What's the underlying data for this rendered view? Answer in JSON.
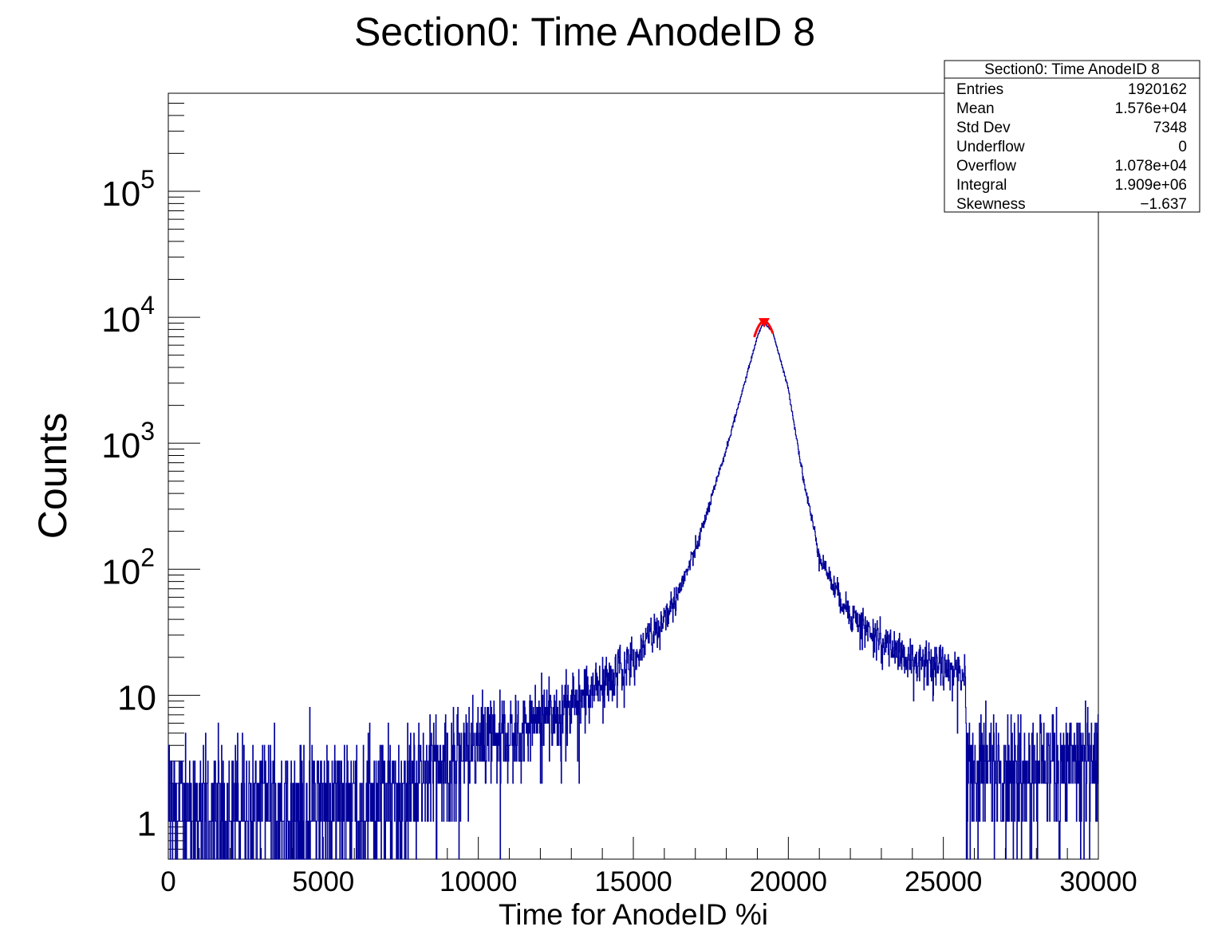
{
  "chart_data": {
    "type": "histogram",
    "title": "Section0: Time AnodeID 8",
    "xlabel": "Time for AnodeID %i",
    "ylabel": "Counts",
    "xlim": [
      0,
      30000
    ],
    "ylim": [
      0.5,
      600000
    ],
    "yscale": "log",
    "x_ticks": [
      0,
      5000,
      10000,
      15000,
      20000,
      25000,
      30000
    ],
    "y_ticks": [
      {
        "value": 1,
        "base": "1",
        "exp": ""
      },
      {
        "value": 10,
        "base": "10",
        "exp": ""
      },
      {
        "value": 100,
        "base": "10",
        "exp": "2"
      },
      {
        "value": 1000,
        "base": "10",
        "exp": "3"
      },
      {
        "value": 10000,
        "base": "10",
        "exp": "4"
      },
      {
        "value": 100000,
        "base": "10",
        "exp": "5"
      }
    ],
    "line_color": "#000099",
    "fit_color": "#ff0000",
    "profile": {
      "x": [
        0,
        2000,
        4000,
        6000,
        7500,
        8000,
        9000,
        10000,
        11000,
        12000,
        13000,
        14000,
        15000,
        16000,
        16500,
        17000,
        17500,
        18000,
        18500,
        19000,
        19200,
        19500,
        20000,
        20500,
        21000,
        21500,
        22000,
        23000,
        24000,
        25000,
        25700,
        25750,
        27000,
        30000
      ],
      "y": [
        1.3,
        1.4,
        1.5,
        1.6,
        1.8,
        2.5,
        3.2,
        4,
        5,
        6.5,
        9,
        13,
        20,
        40,
        70,
        140,
        350,
        900,
        2500,
        7000,
        9300,
        7600,
        2700,
        500,
        130,
        70,
        45,
        28,
        19,
        17,
        16,
        3,
        3,
        3
      ]
    },
    "fit": {
      "x_range": [
        18900,
        19500
      ],
      "peak_x": 19220,
      "peak_y": 9300
    },
    "stats_box": {
      "title": "Section0: Time AnodeID 8",
      "rows": [
        {
          "label": "Entries",
          "value": "1920162"
        },
        {
          "label": "Mean",
          "value": "1.576e+04"
        },
        {
          "label": "Std Dev",
          "value": "7348"
        },
        {
          "label": "Underflow",
          "value": "0"
        },
        {
          "label": "Overflow",
          "value": "1.078e+04"
        },
        {
          "label": "Integral",
          "value": "1.909e+06"
        },
        {
          "label": "Skewness",
          "value": "−1.637"
        }
      ]
    }
  }
}
